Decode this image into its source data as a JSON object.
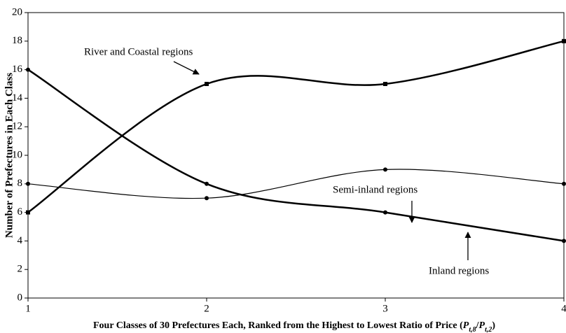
{
  "chart_data": {
    "type": "line",
    "ylabel": "Number of Prefectures in Each Class",
    "xlabel": [
      "Four Classes of 30 Prefectures Each, Ranked from the Highest to Lowest Ratio of Price (",
      "P",
      "t,8",
      "/",
      "P",
      "t,2",
      ")"
    ],
    "x": [
      1,
      2,
      3,
      4
    ],
    "xlim": [
      1,
      4
    ],
    "xticks": [
      1,
      2,
      3,
      4
    ],
    "ylim": [
      0,
      20
    ],
    "yticks": [
      0,
      2,
      4,
      6,
      8,
      10,
      12,
      14,
      16,
      18,
      20
    ],
    "series": [
      {
        "name": "River and Coastal regions",
        "color": "#000000",
        "values": [
          6,
          15,
          15,
          18
        ]
      },
      {
        "name": "Semi-inland regions",
        "color": "#000000",
        "values": [
          8,
          7,
          9,
          8
        ]
      },
      {
        "name": "Inland regions",
        "color": "#000000",
        "values": [
          16,
          8,
          6,
          4
        ]
      }
    ]
  }
}
